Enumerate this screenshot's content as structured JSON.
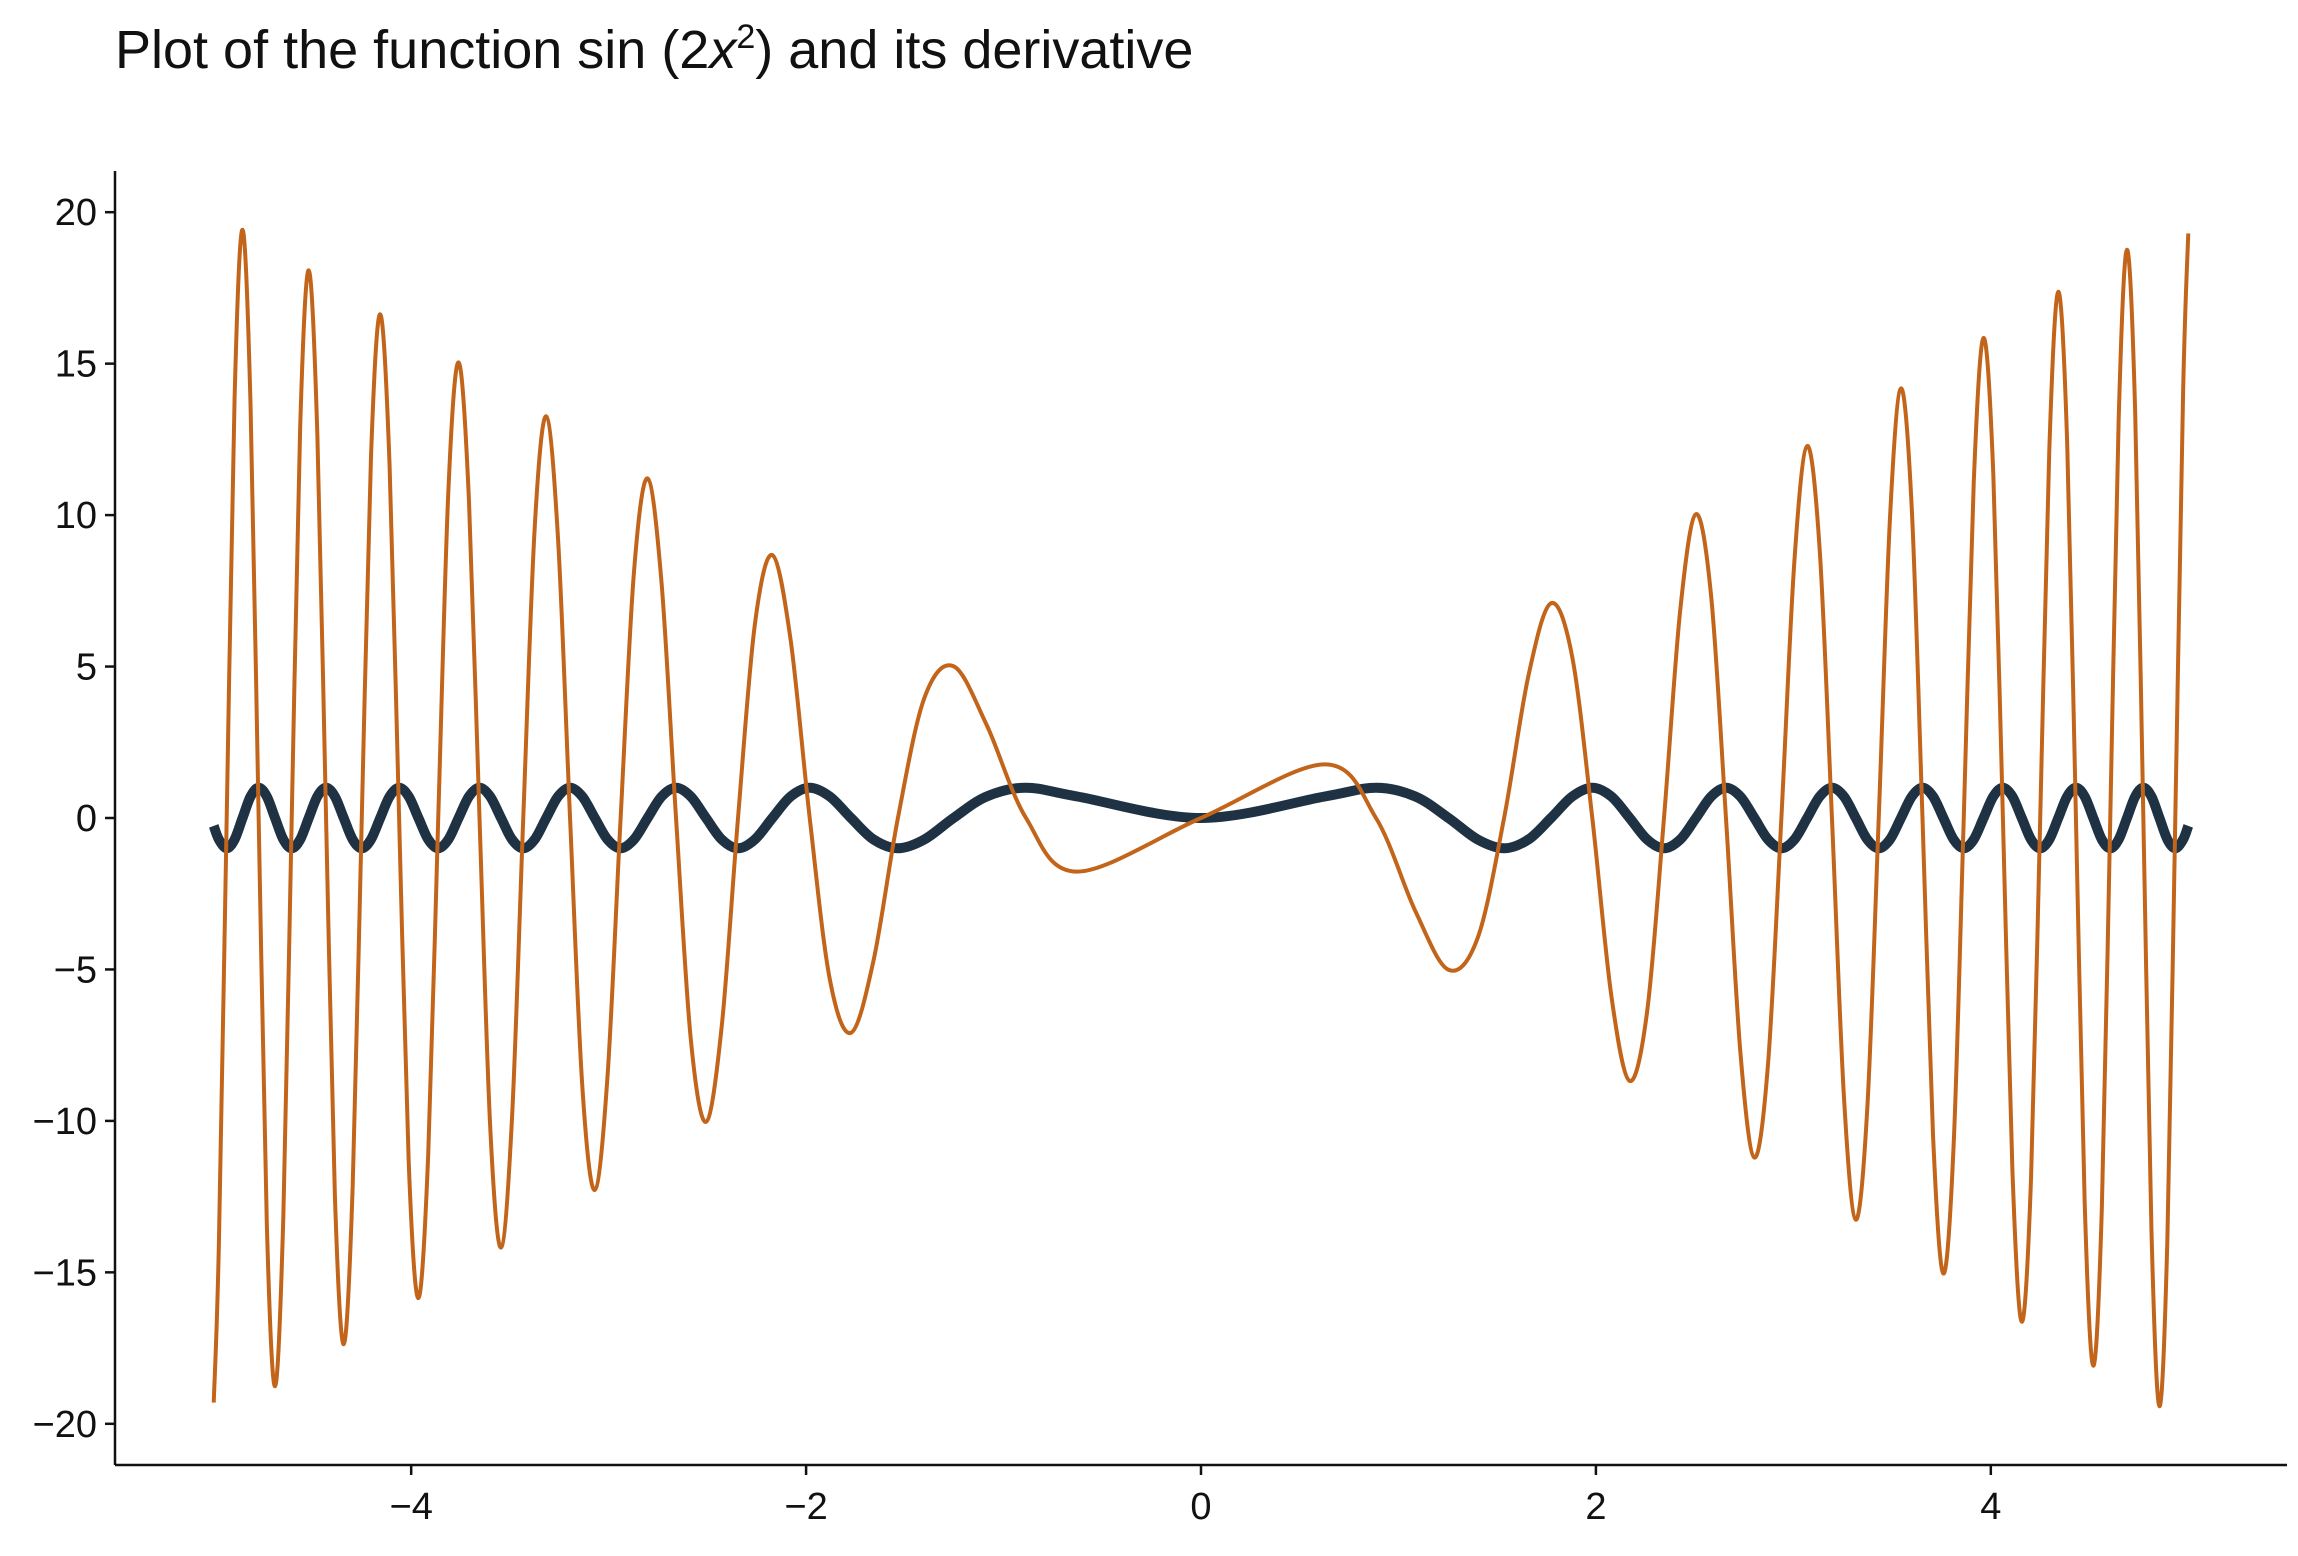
{
  "chart_data": {
    "type": "line",
    "title": [
      "Plot of the function sin (2",
      "x",
      "2",
      ") and its derivative"
    ],
    "x": [
      -5,
      -4.9739,
      -4.9343,
      -4.8944,
      -4.8541,
      -4.8135,
      -4.7725,
      -4.7312,
      -4.6895,
      -4.6474,
      -4.605,
      -4.5622,
      -4.5189,
      -4.4752,
      -4.4311,
      -4.3866,
      -4.3416,
      -4.2962,
      -4.2502,
      -4.2037,
      -4.1568,
      -4.1093,
      -4.0612,
      -4.0126,
      -3.9633,
      -3.9135,
      -3.863,
      -3.8118,
      -3.7599,
      -3.7074,
      -3.654,
      -3.5999,
      -3.5449,
      -3.4891,
      -3.4324,
      -3.3747,
      -3.316,
      -3.2562,
      -3.1954,
      -3.1333,
      -3.07,
      -3.0054,
      -2.9393,
      -2.8717,
      -2.8025,
      -2.7316,
      -2.6587,
      -2.5838,
      -2.5066,
      -2.427,
      -2.3448,
      -2.2594,
      -2.1708,
      -2.0784,
      -1.9817,
      -1.88,
      -1.7725,
      -1.658,
      -1.535,
      -1.4012,
      -1.2533,
      -1.0854,
      -0.8862,
      -0.6267,
      0,
      0.6267,
      0.8862,
      1.0854,
      1.2533,
      1.4012,
      1.535,
      1.658,
      1.7725,
      1.88,
      1.9817,
      2.0784,
      2.1708,
      2.2594,
      2.3448,
      2.427,
      2.5066,
      2.5838,
      2.6587,
      2.7316,
      2.8025,
      2.8717,
      2.9393,
      3.0054,
      3.07,
      3.1333,
      3.1954,
      3.2562,
      3.316,
      3.3747,
      3.4324,
      3.4891,
      3.5449,
      3.5999,
      3.654,
      3.7074,
      3.7599,
      3.8118,
      3.863,
      3.9135,
      3.9633,
      4.0126,
      4.0612,
      4.1093,
      4.1568,
      4.2037,
      4.2502,
      4.2962,
      4.3416,
      4.3866,
      4.4311,
      4.4752,
      4.5189,
      4.5622,
      4.605,
      4.6474,
      4.6895,
      4.7312,
      4.7725,
      4.8135,
      4.8541,
      4.8944,
      4.9343,
      4.9739,
      5
    ],
    "series": [
      {
        "color": "#1f3243",
        "values": [
          -0.26,
          -0.71,
          -1,
          -0.71,
          0,
          0.71,
          1,
          0.71,
          0,
          -0.71,
          -1,
          -0.71,
          0,
          0.71,
          1,
          0.71,
          0,
          -0.71,
          -1,
          -0.71,
          0,
          0.71,
          1,
          0.71,
          0,
          -0.71,
          -1,
          -0.71,
          0,
          0.71,
          1,
          0.71,
          0,
          -0.71,
          -1,
          -0.71,
          0,
          0.71,
          1,
          0.71,
          0,
          -0.71,
          -1,
          -0.71,
          0,
          0.71,
          1,
          0.71,
          0,
          -0.71,
          -1,
          -0.71,
          0,
          0.71,
          1,
          0.71,
          0,
          -0.71,
          -1,
          -0.71,
          0,
          0.71,
          1,
          0.71,
          0,
          0.71,
          1,
          0.71,
          0,
          -0.71,
          -1,
          -0.71,
          0,
          0.71,
          1,
          0.71,
          0,
          -0.71,
          -1,
          -0.71,
          0,
          0.71,
          1,
          0.71,
          0,
          -0.71,
          -1,
          -0.71,
          0,
          0.71,
          1,
          0.71,
          0,
          -0.71,
          -1,
          -0.71,
          0,
          0.71,
          1,
          0.71,
          0,
          -0.71,
          -1,
          -0.71,
          0,
          0.71,
          1,
          0.71,
          0,
          -0.71,
          -1,
          -0.71,
          0,
          0.71,
          1,
          0.71,
          0,
          -0.71,
          -1,
          -0.71,
          0,
          0.71,
          1,
          0.71,
          0,
          -0.71,
          -1,
          -0.71,
          -0.26
        ]
      },
      {
        "color": "#c2651a",
        "values": [
          -19.3,
          -14.07,
          0,
          13.84,
          19.42,
          13.61,
          0,
          -13.38,
          -18.76,
          -13.14,
          0,
          12.9,
          18.08,
          12.66,
          0,
          -12.41,
          -17.37,
          -12.15,
          0,
          11.89,
          16.63,
          11.62,
          0,
          -11.35,
          -15.85,
          -11.07,
          0,
          10.78,
          15.04,
          10.49,
          0,
          -10.18,
          -14.18,
          -9.87,
          0,
          9.55,
          13.26,
          9.21,
          0,
          -8.86,
          -12.28,
          -8.5,
          0,
          8.12,
          11.21,
          7.73,
          0,
          -7.31,
          -10.03,
          -6.86,
          0,
          6.39,
          8.68,
          5.88,
          0,
          -5.32,
          -7.09,
          -4.69,
          0,
          3.96,
          5.01,
          3.07,
          0,
          -1.77,
          0,
          1.77,
          0,
          -3.07,
          -5.01,
          -3.96,
          0,
          4.69,
          7.09,
          5.32,
          0,
          -5.88,
          -8.68,
          -6.39,
          0,
          6.86,
          10.03,
          7.31,
          0,
          -7.73,
          -11.21,
          -8.12,
          0,
          8.5,
          12.28,
          8.86,
          0,
          -9.21,
          -13.26,
          -9.55,
          0,
          9.87,
          14.18,
          10.18,
          0,
          -10.49,
          -15.04,
          -10.78,
          0,
          11.07,
          15.85,
          11.35,
          0,
          -11.62,
          -16.63,
          -11.89,
          0,
          12.15,
          17.37,
          12.41,
          0,
          -12.66,
          -18.08,
          -12.9,
          0,
          13.14,
          18.76,
          13.38,
          0,
          -13.61,
          -19.42,
          -13.84,
          0,
          14.07,
          19.3
        ]
      }
    ],
    "xlim": [
      -5.5,
      5.5
    ],
    "ylim": [
      -21.36,
      21.36
    ],
    "xticks": [
      {
        "value": -4,
        "label": "−4"
      },
      {
        "value": -2,
        "label": "−2"
      },
      0,
      2,
      4
    ],
    "yticks": [
      {
        "value": -20,
        "label": "−20"
      },
      {
        "value": -15,
        "label": "−15"
      },
      {
        "value": -10,
        "label": "−10"
      },
      {
        "value": -5,
        "label": "−5"
      },
      0,
      5,
      10,
      15,
      20
    ]
  }
}
